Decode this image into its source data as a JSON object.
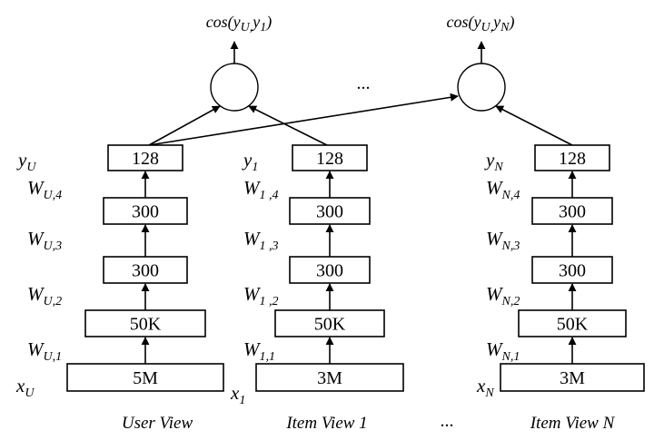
{
  "towers": [
    {
      "caption": "User View",
      "output": {
        "base": "y",
        "sub": "U"
      },
      "input": {
        "base": "x",
        "sub": "U"
      },
      "layers": [
        "5M",
        "50K",
        "300",
        "300",
        "128"
      ],
      "weights": [
        {
          "base": "W",
          "sub": "U,1"
        },
        {
          "base": "W",
          "sub": "U,2"
        },
        {
          "base": "W",
          "sub": "U,3"
        },
        {
          "base": "W",
          "sub": "U,4"
        }
      ]
    },
    {
      "caption": "Item View 1",
      "output": {
        "base": "y",
        "sub": "1"
      },
      "input": {
        "base": "x",
        "sub": "1"
      },
      "layers": [
        "3M",
        "50K",
        "300",
        "300",
        "128"
      ],
      "weights": [
        {
          "base": "W",
          "sub": "1,1"
        },
        {
          "base": "W",
          "sub": "1 ,2"
        },
        {
          "base": "W",
          "sub": "1 ,3"
        },
        {
          "base": "W",
          "sub": "1 ,4"
        }
      ]
    },
    {
      "caption": "Item View N",
      "output": {
        "base": "y",
        "sub": "N"
      },
      "input": {
        "base": "x",
        "sub": "N"
      },
      "layers": [
        "3M",
        "50K",
        "300",
        "300",
        "128"
      ],
      "weights": [
        {
          "base": "W",
          "sub": "N,1"
        },
        {
          "base": "W",
          "sub": "N,2"
        },
        {
          "base": "W",
          "sub": "N,3"
        },
        {
          "base": "W",
          "sub": "N,4"
        }
      ]
    }
  ],
  "similarities": [
    {
      "prefix": "cos(",
      "sub1": "U,",
      "mid": "y",
      "sub2": "1",
      "suffix": ")"
    },
    {
      "prefix": "cos(",
      "sub1": "U,",
      "mid": "y",
      "sub2": "N",
      "suffix": ")"
    }
  ],
  "ellipsis_top": "...",
  "ellipsis_bottom": "..."
}
